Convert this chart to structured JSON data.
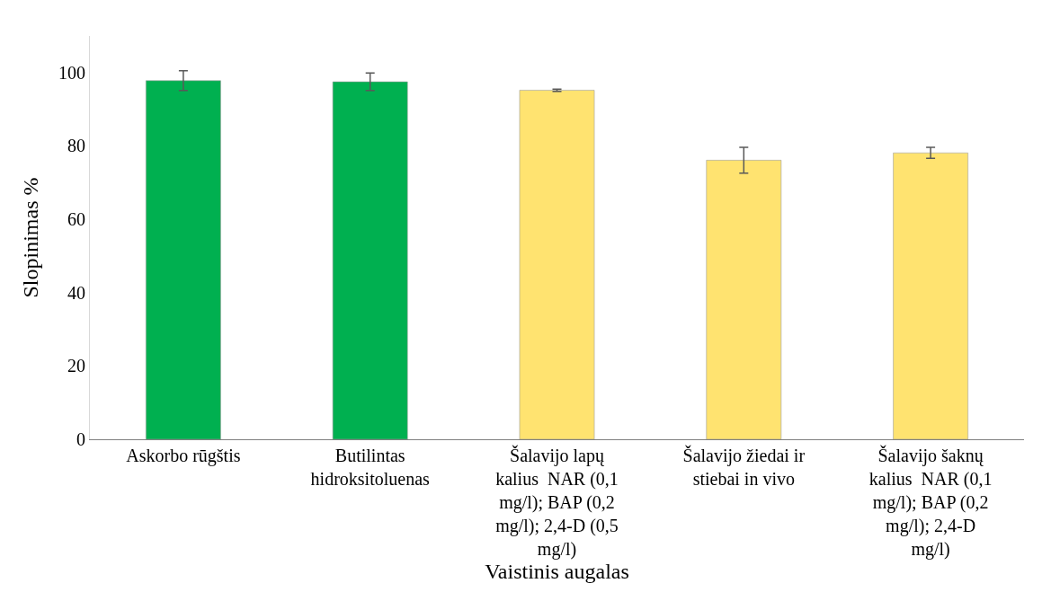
{
  "chart_data": {
    "type": "bar",
    "xlabel": "Vaistinis augalas",
    "ylabel": "Slopinimas %",
    "categories": [
      "Askorbo rūgštis",
      "Butilintas\nhidroksitoluenas",
      "Šalavijo lapų\nkalius  NAR (0,1\nmg/l); BAP (0,2\nmg/l); 2,4-D (0,5\nmg/l)",
      "Šalavijo žiedai ir\nstiebai in vivo",
      "Šalavijo šaknų\nkalius  NAR (0,1\nmg/l); BAP (0,2\nmg/l); 2,4-D\nmg/l)"
    ],
    "values": [
      97.8,
      97.5,
      95.2,
      76.1,
      78.1
    ],
    "errors": [
      2.7,
      2.4,
      0.3,
      3.5,
      1.5
    ],
    "colors": [
      "#00b050",
      "#00b050",
      "#ffe370",
      "#ffe370",
      "#ffe370"
    ],
    "ylim": [
      0,
      110
    ],
    "yticks": [
      0,
      20,
      40,
      60,
      80,
      100
    ],
    "legend": false
  }
}
